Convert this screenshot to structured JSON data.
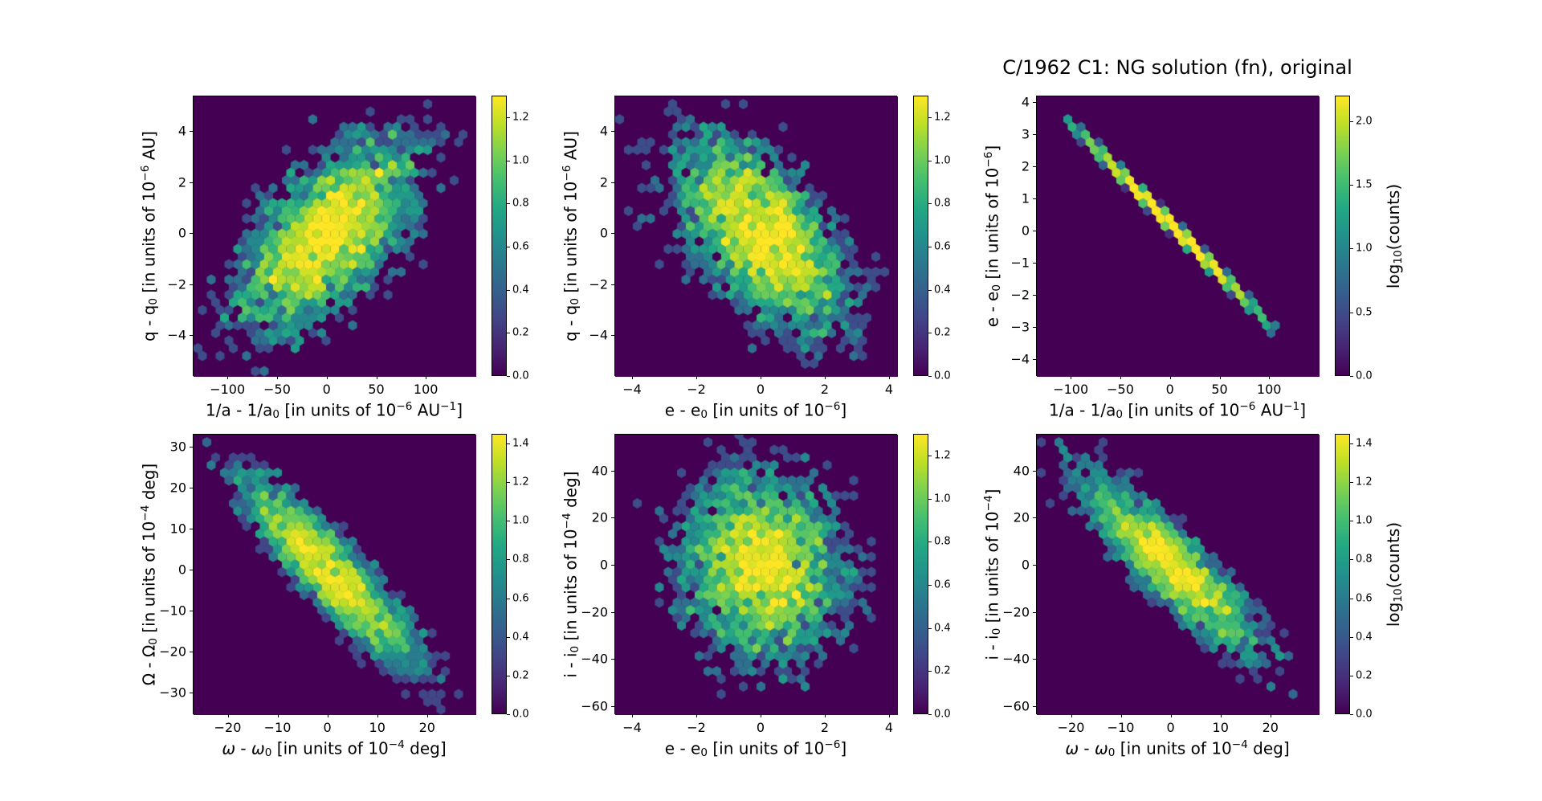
{
  "figure": {
    "background": "#ffffff",
    "colormap": "viridis",
    "title": "C/1962 C1: NG solution (fn), original"
  },
  "viridis_stops": [
    "#440154",
    "#482475",
    "#414487",
    "#355f8d",
    "#2a788e",
    "#21918c",
    "#22a884",
    "#44bf70",
    "#7ad151",
    "#bddf26",
    "#fde725"
  ],
  "chart_data": [
    {
      "id": "q-vs-inva",
      "type": "hexbin",
      "title": null,
      "xlabel": "1/a - 1/a₀ [in units of 10⁻⁶ AU⁻¹]",
      "ylabel": "q - q₀ [in units of 10⁻⁶ AU]",
      "xlabel_segments": [
        {
          "t": "1/a - 1/a"
        },
        {
          "t": "0",
          "v": "sub"
        },
        {
          "t": " [in units of 10"
        },
        {
          "t": "−6",
          "v": "sup"
        },
        {
          "t": " AU"
        },
        {
          "t": "−1",
          "v": "sup"
        },
        {
          "t": "]"
        }
      ],
      "ylabel_segments": [
        {
          "t": "q - q"
        },
        {
          "t": "0",
          "v": "sub"
        },
        {
          "t": " [in units of 10"
        },
        {
          "t": "−6",
          "v": "sup"
        },
        {
          "t": " AU]"
        }
      ],
      "xlim": [
        -135,
        150
      ],
      "ylim": [
        -5.6,
        5.4
      ],
      "xticks": [
        {
          "v": -100,
          "l": "−100"
        },
        {
          "v": -50,
          "l": "−50"
        },
        {
          "v": 0,
          "l": "0"
        },
        {
          "v": 50,
          "l": "50"
        },
        {
          "v": 100,
          "l": "100"
        }
      ],
      "yticks": [
        {
          "v": -4,
          "l": "−4"
        },
        {
          "v": -2,
          "l": "−2"
        },
        {
          "v": 0,
          "l": "0"
        },
        {
          "v": 2,
          "l": "2"
        },
        {
          "v": 4,
          "l": "4"
        }
      ],
      "colorbar": {
        "vmax": 1.3,
        "ticks": [
          {
            "v": 0.0,
            "l": "0.0"
          },
          {
            "v": 0.2,
            "l": "0.2"
          },
          {
            "v": 0.4,
            "l": "0.4"
          },
          {
            "v": 0.6,
            "l": "0.6"
          },
          {
            "v": 0.8,
            "l": "0.8"
          },
          {
            "v": 1.0,
            "l": "1.0"
          },
          {
            "v": 1.2,
            "l": "1.2"
          }
        ],
        "label_segments": null
      },
      "distribution": {
        "kind": "gauss2d",
        "center": [
          0,
          0
        ],
        "sigma_x": 48,
        "sigma_y": 2.0,
        "rho": 0.6,
        "n": 3800,
        "seed": 11,
        "peak_log10_counts": 1.3
      }
    },
    {
      "id": "q-vs-e",
      "type": "hexbin",
      "title": null,
      "xlabel": "e - e₀ [in units of 10⁻⁶]",
      "ylabel": "q - q₀ [in units of 10⁻⁶ AU]",
      "xlabel_segments": [
        {
          "t": "e - e"
        },
        {
          "t": "0",
          "v": "sub"
        },
        {
          "t": " [in units of 10"
        },
        {
          "t": "−6",
          "v": "sup"
        },
        {
          "t": "]"
        }
      ],
      "ylabel_segments": [
        {
          "t": "q - q"
        },
        {
          "t": "0",
          "v": "sub"
        },
        {
          "t": " [in units of 10"
        },
        {
          "t": "−6",
          "v": "sup"
        },
        {
          "t": " AU]"
        }
      ],
      "xlim": [
        -4.55,
        4.25
      ],
      "ylim": [
        -5.6,
        5.4
      ],
      "xticks": [
        {
          "v": -4,
          "l": "−4"
        },
        {
          "v": -2,
          "l": "−2"
        },
        {
          "v": 0,
          "l": "0"
        },
        {
          "v": 2,
          "l": "2"
        },
        {
          "v": 4,
          "l": "4"
        }
      ],
      "yticks": [
        {
          "v": -4,
          "l": "−4"
        },
        {
          "v": -2,
          "l": "−2"
        },
        {
          "v": 0,
          "l": "0"
        },
        {
          "v": 2,
          "l": "2"
        },
        {
          "v": 4,
          "l": "4"
        }
      ],
      "colorbar": {
        "vmax": 1.3,
        "ticks": [
          {
            "v": 0.0,
            "l": "0.0"
          },
          {
            "v": 0.2,
            "l": "0.2"
          },
          {
            "v": 0.4,
            "l": "0.4"
          },
          {
            "v": 0.6,
            "l": "0.6"
          },
          {
            "v": 0.8,
            "l": "0.8"
          },
          {
            "v": 1.0,
            "l": "1.0"
          },
          {
            "v": 1.2,
            "l": "1.2"
          }
        ],
        "label_segments": null
      },
      "distribution": {
        "kind": "gauss2d",
        "center": [
          0,
          0
        ],
        "sigma_x": 1.45,
        "sigma_y": 2.0,
        "rho": -0.55,
        "n": 3800,
        "seed": 22,
        "peak_log10_counts": 1.3
      }
    },
    {
      "id": "e-vs-inva",
      "type": "hexbin",
      "title": "C/1962 C1: NG solution (fn), original",
      "xlabel": "1/a - 1/a₀ [in units of 10⁻⁶ AU⁻¹]",
      "ylabel": "e - e₀ [in units of 10⁻⁶]",
      "xlabel_segments": [
        {
          "t": "1/a - 1/a"
        },
        {
          "t": "0",
          "v": "sub"
        },
        {
          "t": " [in units of 10"
        },
        {
          "t": "−6",
          "v": "sup"
        },
        {
          "t": " AU"
        },
        {
          "t": "−1",
          "v": "sup"
        },
        {
          "t": "]"
        }
      ],
      "ylabel_segments": [
        {
          "t": "e - e"
        },
        {
          "t": "0",
          "v": "sub"
        },
        {
          "t": " [in units of 10"
        },
        {
          "t": "−6",
          "v": "sup"
        },
        {
          "t": "]"
        }
      ],
      "xlim": [
        -135,
        150
      ],
      "ylim": [
        -4.52,
        4.2
      ],
      "xticks": [
        {
          "v": -100,
          "l": "−100"
        },
        {
          "v": -50,
          "l": "−50"
        },
        {
          "v": 0,
          "l": "0"
        },
        {
          "v": 50,
          "l": "50"
        },
        {
          "v": 100,
          "l": "100"
        }
      ],
      "yticks": [
        {
          "v": -4,
          "l": "−4"
        },
        {
          "v": -3,
          "l": "−3"
        },
        {
          "v": -2,
          "l": "−2"
        },
        {
          "v": -1,
          "l": "−1"
        },
        {
          "v": 0,
          "l": "0"
        },
        {
          "v": 1,
          "l": "1"
        },
        {
          "v": 2,
          "l": "2"
        },
        {
          "v": 3,
          "l": "3"
        },
        {
          "v": 4,
          "l": "4"
        }
      ],
      "colorbar": {
        "vmax": 2.2,
        "ticks": [
          {
            "v": 0.0,
            "l": "0.0"
          },
          {
            "v": 0.5,
            "l": "0.5"
          },
          {
            "v": 1.0,
            "l": "1.0"
          },
          {
            "v": 1.5,
            "l": "1.5"
          },
          {
            "v": 2.0,
            "l": "2.0"
          }
        ],
        "label_segments": [
          {
            "t": "log"
          },
          {
            "t": "10",
            "v": "sub"
          },
          {
            "t": "(counts)"
          }
        ]
      },
      "distribution": {
        "kind": "line",
        "sigma_x": 46,
        "x_min": -108,
        "x_max": 106,
        "slope": -0.0312,
        "intercept": 0.22,
        "noise": 0.05,
        "n": 4500,
        "seed": 33,
        "peak_log10_counts": 2.2
      }
    },
    {
      "id": "Omega-vs-omega",
      "type": "hexbin",
      "title": null,
      "xlabel": "ω - ω₀ [in units of 10⁻⁴ deg]",
      "ylabel": "Ω - Ω₀ [in units of 10⁻⁴ deg]",
      "xlabel_segments": [
        {
          "t": "ω",
          "v": "i"
        },
        {
          "t": " - "
        },
        {
          "t": "ω",
          "v": "i"
        },
        {
          "t": "0",
          "v": "sub"
        },
        {
          "t": " [in units of 10"
        },
        {
          "t": "−4",
          "v": "sup"
        },
        {
          "t": " deg]"
        }
      ],
      "ylabel_segments": [
        {
          "t": "Ω - Ω"
        },
        {
          "t": "0",
          "v": "sub"
        },
        {
          "t": " [in units of 10"
        },
        {
          "t": "−4",
          "v": "sup"
        },
        {
          "t": " deg]"
        }
      ],
      "xlim": [
        -27,
        29.7
      ],
      "ylim": [
        -35.3,
        33.1
      ],
      "xticks": [
        {
          "v": -20,
          "l": "−20"
        },
        {
          "v": -10,
          "l": "−10"
        },
        {
          "v": 0,
          "l": "0"
        },
        {
          "v": 10,
          "l": "10"
        },
        {
          "v": 20,
          "l": "20"
        }
      ],
      "yticks": [
        {
          "v": -30,
          "l": "−30"
        },
        {
          "v": -20,
          "l": "−20"
        },
        {
          "v": -10,
          "l": "−10"
        },
        {
          "v": 0,
          "l": "0"
        },
        {
          "v": 10,
          "l": "10"
        },
        {
          "v": 20,
          "l": "20"
        },
        {
          "v": 30,
          "l": "30"
        }
      ],
      "colorbar": {
        "vmax": 1.45,
        "ticks": [
          {
            "v": 0.0,
            "l": "0.0"
          },
          {
            "v": 0.2,
            "l": "0.2"
          },
          {
            "v": 0.4,
            "l": "0.4"
          },
          {
            "v": 0.6,
            "l": "0.6"
          },
          {
            "v": 0.8,
            "l": "0.8"
          },
          {
            "v": 1.0,
            "l": "1.0"
          },
          {
            "v": 1.2,
            "l": "1.2"
          },
          {
            "v": 1.4,
            "l": "1.4"
          }
        ],
        "label_segments": null
      },
      "distribution": {
        "kind": "gauss2d",
        "center": [
          0,
          0
        ],
        "sigma_x": 9.5,
        "sigma_y": 12.5,
        "rho": -0.9,
        "n": 2800,
        "seed": 44,
        "peak_log10_counts": 1.45
      }
    },
    {
      "id": "i-vs-e",
      "type": "hexbin",
      "title": null,
      "xlabel": "e - e₀ [in units of 10⁻⁶]",
      "ylabel": "i - i₀ [in units of 10⁻⁴ deg]",
      "xlabel_segments": [
        {
          "t": "e - e"
        },
        {
          "t": "0",
          "v": "sub"
        },
        {
          "t": " [in units of 10"
        },
        {
          "t": "−6",
          "v": "sup"
        },
        {
          "t": "]"
        }
      ],
      "ylabel_segments": [
        {
          "t": "i - i"
        },
        {
          "t": "0",
          "v": "sub"
        },
        {
          "t": " [in units of 10"
        },
        {
          "t": "−4",
          "v": "sup"
        },
        {
          "t": " deg]"
        }
      ],
      "xlim": [
        -4.55,
        4.25
      ],
      "ylim": [
        -63.5,
        55.6
      ],
      "xticks": [
        {
          "v": -4,
          "l": "−4"
        },
        {
          "v": -2,
          "l": "−2"
        },
        {
          "v": 0,
          "l": "0"
        },
        {
          "v": 2,
          "l": "2"
        },
        {
          "v": 4,
          "l": "4"
        }
      ],
      "yticks": [
        {
          "v": -60,
          "l": "−60"
        },
        {
          "v": -40,
          "l": "−40"
        },
        {
          "v": -20,
          "l": "−20"
        },
        {
          "v": 0,
          "l": "0"
        },
        {
          "v": 20,
          "l": "20"
        },
        {
          "v": 40,
          "l": "40"
        }
      ],
      "colorbar": {
        "vmax": 1.3,
        "ticks": [
          {
            "v": 0.0,
            "l": "0.0"
          },
          {
            "v": 0.2,
            "l": "0.2"
          },
          {
            "v": 0.4,
            "l": "0.4"
          },
          {
            "v": 0.6,
            "l": "0.6"
          },
          {
            "v": 0.8,
            "l": "0.8"
          },
          {
            "v": 1.0,
            "l": "1.0"
          },
          {
            "v": 1.2,
            "l": "1.2"
          }
        ],
        "label_segments": null
      },
      "distribution": {
        "kind": "gauss2d",
        "center": [
          0,
          0
        ],
        "sigma_x": 1.35,
        "sigma_y": 21,
        "rho": -0.12,
        "n": 3800,
        "seed": 55,
        "peak_log10_counts": 1.3
      }
    },
    {
      "id": "i-vs-omega",
      "type": "hexbin",
      "title": null,
      "xlabel": "ω - ω₀ [in units of 10⁻⁴ deg]",
      "ylabel": "i - i₀ [in units of 10⁻⁴]",
      "xlabel_segments": [
        {
          "t": "ω",
          "v": "i"
        },
        {
          "t": " - "
        },
        {
          "t": "ω",
          "v": "i"
        },
        {
          "t": "0",
          "v": "sub"
        },
        {
          "t": " [in units of 10"
        },
        {
          "t": "−4",
          "v": "sup"
        },
        {
          "t": " deg]"
        }
      ],
      "ylabel_segments": [
        {
          "t": "i - i"
        },
        {
          "t": "0",
          "v": "sub"
        },
        {
          "t": " [in units of 10"
        },
        {
          "t": "−4",
          "v": "sup"
        },
        {
          "t": "]"
        }
      ],
      "xlim": [
        -27,
        29.7
      ],
      "ylim": [
        -63.5,
        55.6
      ],
      "xticks": [
        {
          "v": -20,
          "l": "−20"
        },
        {
          "v": -10,
          "l": "−10"
        },
        {
          "v": 0,
          "l": "0"
        },
        {
          "v": 10,
          "l": "10"
        },
        {
          "v": 20,
          "l": "20"
        }
      ],
      "yticks": [
        {
          "v": -60,
          "l": "−60"
        },
        {
          "v": -40,
          "l": "−40"
        },
        {
          "v": -20,
          "l": "−20"
        },
        {
          "v": 0,
          "l": "0"
        },
        {
          "v": 20,
          "l": "20"
        },
        {
          "v": 40,
          "l": "40"
        }
      ],
      "colorbar": {
        "vmax": 1.45,
        "ticks": [
          {
            "v": 0.0,
            "l": "0.0"
          },
          {
            "v": 0.2,
            "l": "0.2"
          },
          {
            "v": 0.4,
            "l": "0.4"
          },
          {
            "v": 0.6,
            "l": "0.6"
          },
          {
            "v": 0.8,
            "l": "0.8"
          },
          {
            "v": 1.0,
            "l": "1.0"
          },
          {
            "v": 1.2,
            "l": "1.2"
          },
          {
            "v": 1.4,
            "l": "1.4"
          }
        ],
        "label_segments": [
          {
            "t": "log"
          },
          {
            "t": "10",
            "v": "sub"
          },
          {
            "t": "(counts)"
          }
        ]
      },
      "distribution": {
        "kind": "gauss2d",
        "center": [
          0,
          0
        ],
        "sigma_x": 9.5,
        "sigma_y": 20,
        "rho": -0.88,
        "n": 2800,
        "seed": 66,
        "peak_log10_counts": 1.45
      }
    }
  ]
}
